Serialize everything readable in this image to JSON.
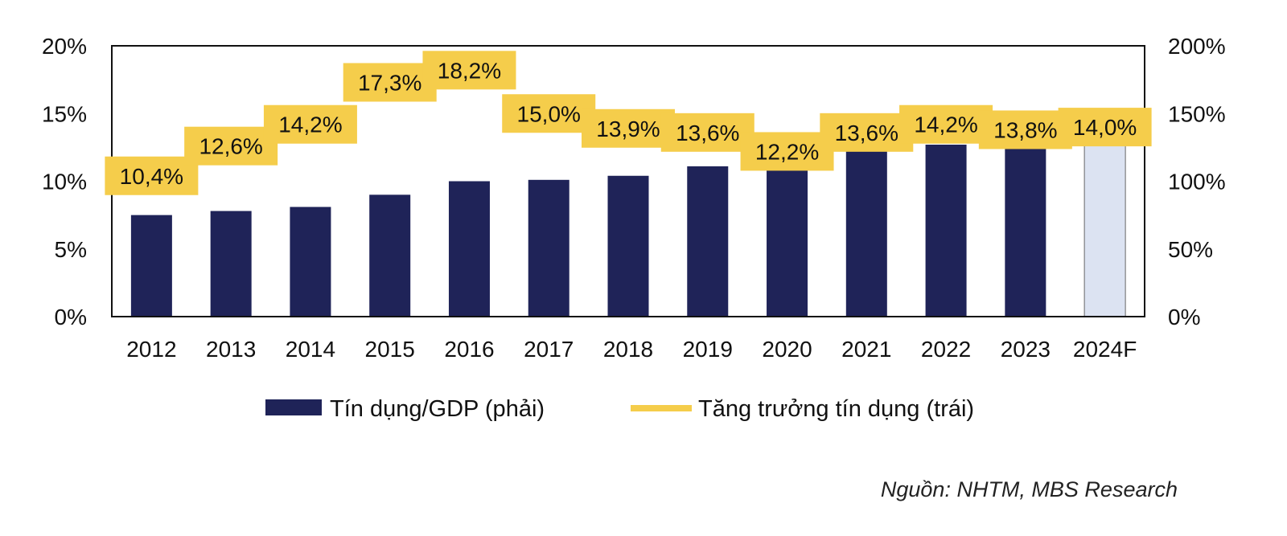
{
  "chart_data": {
    "type": "bar",
    "categories": [
      "2012",
      "2013",
      "2014",
      "2015",
      "2016",
      "2017",
      "2018",
      "2019",
      "2020",
      "2021",
      "2022",
      "2023",
      "2024F"
    ],
    "series": [
      {
        "name": "Tín dụng/GDP (phải)",
        "type": "bar",
        "axis": "right",
        "color": "#1f2358",
        "forecast_color": "#dce3f2",
        "values": [
          75,
          78,
          81,
          90,
          100,
          101,
          104,
          111,
          113,
          125,
          127,
          127,
          127
        ]
      },
      {
        "name": "Tăng trưởng tín dụng (trái)",
        "type": "line",
        "axis": "left",
        "color": "#f5cd4b",
        "values": [
          10.4,
          12.6,
          14.2,
          17.3,
          18.2,
          15.0,
          13.9,
          13.6,
          12.2,
          13.6,
          14.2,
          13.8,
          14.0
        ],
        "labels": [
          "10,4%",
          "12,6%",
          "14,2%",
          "17,3%",
          "18,2%",
          "15,0%",
          "13,9%",
          "13,6%",
          "12,2%",
          "13,6%",
          "14,2%",
          "13,8%",
          "14,0%"
        ]
      }
    ],
    "y_left": {
      "ylim": [
        0,
        20
      ],
      "ticks": [
        "0%",
        "5%",
        "10%",
        "15%",
        "20%"
      ]
    },
    "y_right": {
      "ylim": [
        0,
        200
      ],
      "ticks": [
        "0%",
        "50%",
        "100%",
        "150%",
        "200%"
      ]
    },
    "legend": {
      "position": "bottom",
      "entries": [
        "Tín dụng/GDP (phải)",
        "Tăng trưởng tín dụng (trái)"
      ]
    },
    "title": "",
    "xlabel": "",
    "ylabel": ""
  },
  "source": "Nguồn: NHTM, MBS Research"
}
